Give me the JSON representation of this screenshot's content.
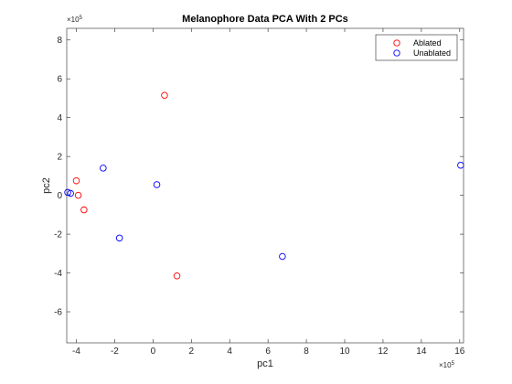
{
  "chart_data": {
    "type": "scatter",
    "title": "Melanophore Data PCA With 2 PCs",
    "xlabel": "pc1",
    "ylabel": "pc2",
    "x_exponent_label": "×10",
    "x_exponent_power": "5",
    "y_exponent_label": "×10",
    "y_exponent_power": "5",
    "xlim": [
      -4.5,
      16.2
    ],
    "ylim": [
      -7.6,
      8.6
    ],
    "xticks": [
      -4,
      -2,
      0,
      2,
      4,
      6,
      8,
      10,
      12,
      14,
      16
    ],
    "yticks": [
      -6,
      -4,
      -2,
      0,
      2,
      4,
      6,
      8
    ],
    "grid": false,
    "legend_position": "top-right",
    "series": [
      {
        "name": "Ablated",
        "color": "#ff0000",
        "marker": "open-circle",
        "points": [
          {
            "x": 0.6,
            "y": 5.15
          },
          {
            "x": -4.0,
            "y": 0.75
          },
          {
            "x": -3.9,
            "y": 0.0
          },
          {
            "x": -3.6,
            "y": -0.75
          },
          {
            "x": 1.25,
            "y": -4.15
          }
        ]
      },
      {
        "name": "Unablated",
        "color": "#0000ff",
        "marker": "open-circle",
        "points": [
          {
            "x": -4.45,
            "y": 0.15
          },
          {
            "x": -4.3,
            "y": 0.1
          },
          {
            "x": -2.6,
            "y": 1.4
          },
          {
            "x": 0.2,
            "y": 0.55
          },
          {
            "x": -1.75,
            "y": -2.2
          },
          {
            "x": 6.75,
            "y": -3.15
          },
          {
            "x": 16.05,
            "y": 1.55
          }
        ]
      }
    ]
  }
}
